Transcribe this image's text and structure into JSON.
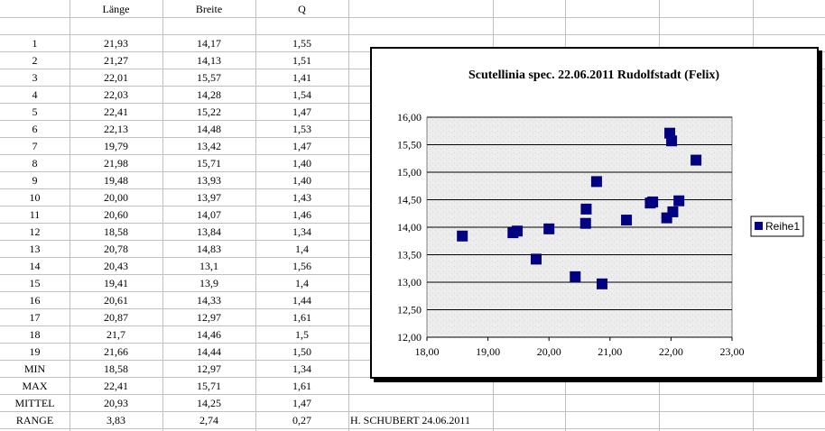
{
  "sheet": {
    "headers": [
      "",
      "Länge",
      "Breite",
      "Q"
    ],
    "rows": [
      [
        "1",
        "21,93",
        "14,17",
        "1,55"
      ],
      [
        "2",
        "21,27",
        "14,13",
        "1,51"
      ],
      [
        "3",
        "22,01",
        "15,57",
        "1,41"
      ],
      [
        "4",
        "22,03",
        "14,28",
        "1,54"
      ],
      [
        "5",
        "22,41",
        "15,22",
        "1,47"
      ],
      [
        "6",
        "22,13",
        "14,48",
        "1,53"
      ],
      [
        "7",
        "19,79",
        "13,42",
        "1,47"
      ],
      [
        "8",
        "21,98",
        "15,71",
        "1,40"
      ],
      [
        "9",
        "19,48",
        "13,93",
        "1,40"
      ],
      [
        "10",
        "20,00",
        "13,97",
        "1,43"
      ],
      [
        "11",
        "20,60",
        "14,07",
        "1,46"
      ],
      [
        "12",
        "18,58",
        "13,84",
        "1,34"
      ],
      [
        "13",
        "20,78",
        "14,83",
        "1,4"
      ],
      [
        "14",
        "20,43",
        "13,1",
        "1,56"
      ],
      [
        "15",
        "19,41",
        "13,9",
        "1,4"
      ],
      [
        "16",
        "20,61",
        "14,33",
        "1,44"
      ],
      [
        "17",
        "20,87",
        "12,97",
        "1,61"
      ],
      [
        "18",
        "21,7",
        "14,46",
        "1,5"
      ],
      [
        "19",
        "21,66",
        "14,44",
        "1,50"
      ]
    ],
    "stats": [
      [
        "MIN",
        "18,58",
        "12,97",
        "1,34"
      ],
      [
        "MAX",
        "22,41",
        "15,71",
        "1,61"
      ],
      [
        "MITTEL",
        "20,93",
        "14,25",
        "1,47"
      ],
      [
        "RANGE",
        "3,83",
        "2,74",
        "0,27"
      ]
    ],
    "author_note": "H. SCHUBERT  24.06.2011"
  },
  "colors": {
    "grid": "#c0c0c0",
    "marker": "#000080",
    "plot_bg": "#ececec"
  },
  "chart_data": {
    "type": "scatter",
    "title": "Scutellinia spec. 22.06.2011 Rudolfstadt (Felix)",
    "xlabel": "",
    "ylabel": "",
    "xlim": [
      18,
      23
    ],
    "ylim": [
      12,
      16
    ],
    "x_tick_labels": [
      "18,00",
      "19,00",
      "20,00",
      "21,00",
      "22,00",
      "23,00"
    ],
    "y_tick_labels": [
      "12,00",
      "12,50",
      "13,00",
      "13,50",
      "14,00",
      "14,50",
      "15,00",
      "15,50",
      "16,00"
    ],
    "grid": "horizontal",
    "legend": "right",
    "series": [
      {
        "name": "Reihe1",
        "points": [
          [
            21.93,
            14.17
          ],
          [
            21.27,
            14.13
          ],
          [
            22.01,
            15.57
          ],
          [
            22.03,
            14.28
          ],
          [
            22.41,
            15.22
          ],
          [
            22.13,
            14.48
          ],
          [
            19.79,
            13.42
          ],
          [
            21.98,
            15.71
          ],
          [
            19.48,
            13.93
          ],
          [
            20.0,
            13.97
          ],
          [
            20.6,
            14.07
          ],
          [
            18.58,
            13.84
          ],
          [
            20.78,
            14.83
          ],
          [
            20.43,
            13.1
          ],
          [
            19.41,
            13.9
          ],
          [
            20.61,
            14.33
          ],
          [
            20.87,
            12.97
          ],
          [
            21.7,
            14.46
          ],
          [
            21.66,
            14.44
          ]
        ]
      }
    ]
  }
}
